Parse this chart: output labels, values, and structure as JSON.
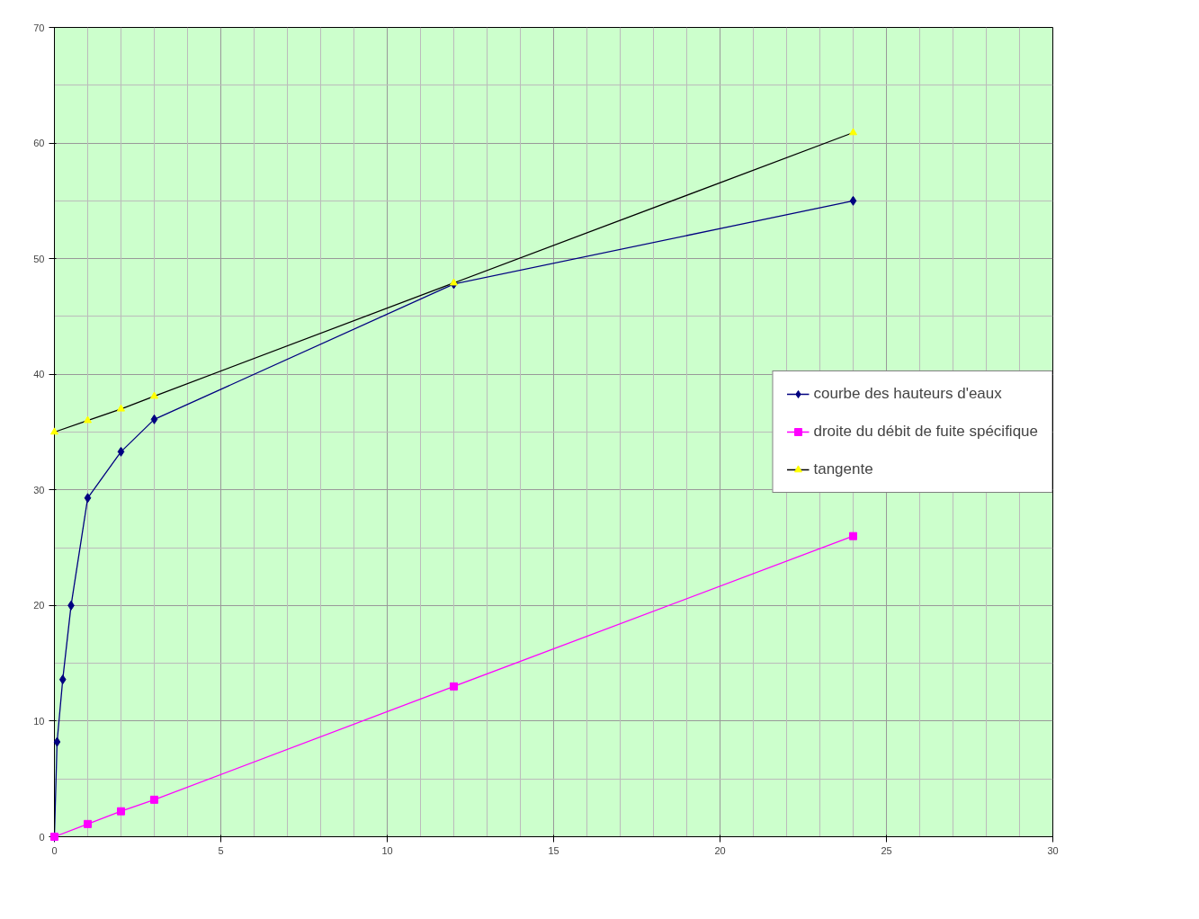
{
  "chart_data": {
    "type": "line",
    "xlim": [
      0,
      30
    ],
    "xticks": [
      0,
      5,
      10,
      15,
      20,
      25,
      30
    ],
    "ylim": [
      0,
      70
    ],
    "yticks": [
      0,
      10,
      20,
      30,
      40,
      50,
      60,
      70
    ],
    "grid": true,
    "legend": "right",
    "series": [
      {
        "name": "courbe des hauteurs d'eaux",
        "color": "#000080",
        "marker": "diamond",
        "x": [
          0,
          0.08,
          0.25,
          0.5,
          1,
          2,
          3,
          12,
          24
        ],
        "values": [
          0,
          8.2,
          13.6,
          20.0,
          29.3,
          33.3,
          36.1,
          47.8,
          55.0
        ]
      },
      {
        "name": "droite du débit de fuite spécifique",
        "color": "#ff00ff",
        "marker": "square",
        "x": [
          0,
          1,
          2,
          3,
          12,
          24
        ],
        "values": [
          0,
          1.1,
          2.2,
          3.2,
          13.0,
          26.0
        ]
      },
      {
        "name": "tangente",
        "color": "#000000",
        "colors": [
          "#ffff00",
          "#ffff00",
          "#ffff00",
          "#ffff00",
          "#ffff00",
          "#ffff00"
        ],
        "marker": "triangle",
        "x": [
          0,
          1,
          2,
          3,
          12,
          24
        ],
        "values": [
          35.0,
          36.0,
          37.0,
          38.1,
          47.9,
          60.9
        ]
      }
    ]
  }
}
